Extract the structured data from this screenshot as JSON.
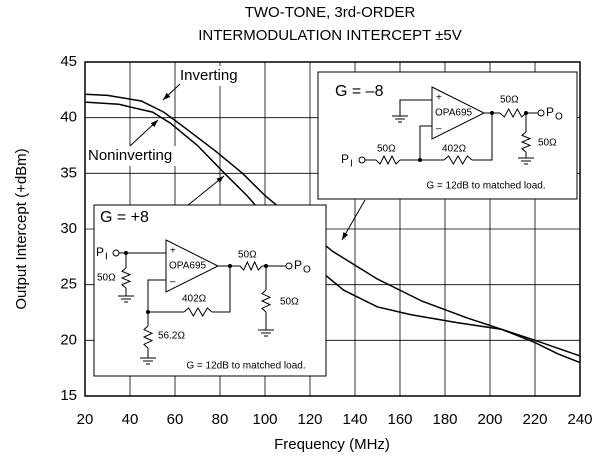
{
  "chart_data": {
    "type": "line",
    "title": "TWO-TONE, 3rd-ORDER",
    "subtitle": "INTERMODULATION INTERCEPT ±5V",
    "x_label": "Frequency (MHz)",
    "y_label": "Output Intercept (+dBm)",
    "xlim": [
      20,
      240
    ],
    "xticks": [
      20,
      40,
      60,
      80,
      100,
      120,
      140,
      160,
      180,
      200,
      220,
      240
    ],
    "ylim": [
      15,
      45
    ],
    "yticks": [
      15,
      20,
      25,
      30,
      35,
      40,
      45
    ],
    "grid": true,
    "series": [
      {
        "name": "Inverting",
        "color": "#000000",
        "x": [
          20,
          30,
          45,
          55,
          65,
          78,
          90,
          100,
          115,
          130,
          150,
          170,
          190,
          205,
          220,
          230,
          240
        ],
        "values": [
          42.1,
          42,
          41.5,
          40.5,
          39,
          37,
          35,
          33,
          30.5,
          28,
          25.5,
          23.5,
          22,
          21,
          19.8,
          18.8,
          18
        ]
      },
      {
        "name": "Noninverting",
        "color": "#000000",
        "x": [
          20,
          35,
          50,
          58,
          70,
          82,
          92,
          105,
          120,
          135,
          150,
          165,
          185,
          205,
          220,
          240
        ],
        "values": [
          41.4,
          41.2,
          40.5,
          39.5,
          37.5,
          35,
          33,
          30,
          27,
          24.5,
          23,
          22.3,
          21.6,
          21,
          20,
          18.6
        ]
      }
    ],
    "insets": [
      {
        "label": "G = –8",
        "amp": "OPA695",
        "plus": "+",
        "minus": "–",
        "resistors": [
          "50Ω",
          "50Ω",
          "50Ω",
          "402Ω"
        ],
        "input": {
          "text": "P",
          "sub": "I"
        },
        "output": {
          "text": "P",
          "sub": "O"
        },
        "note": "G = 12dB to matched load."
      },
      {
        "label": "G = +8",
        "amp": "OPA695",
        "plus": "+",
        "minus": "–",
        "resistors": [
          "50Ω",
          "50Ω",
          "50Ω",
          "402Ω",
          "56.2Ω"
        ],
        "input": {
          "text": "P",
          "sub": "I"
        },
        "output": {
          "text": "P",
          "sub": "O"
        },
        "note": "G = 12dB to matched load."
      }
    ]
  }
}
